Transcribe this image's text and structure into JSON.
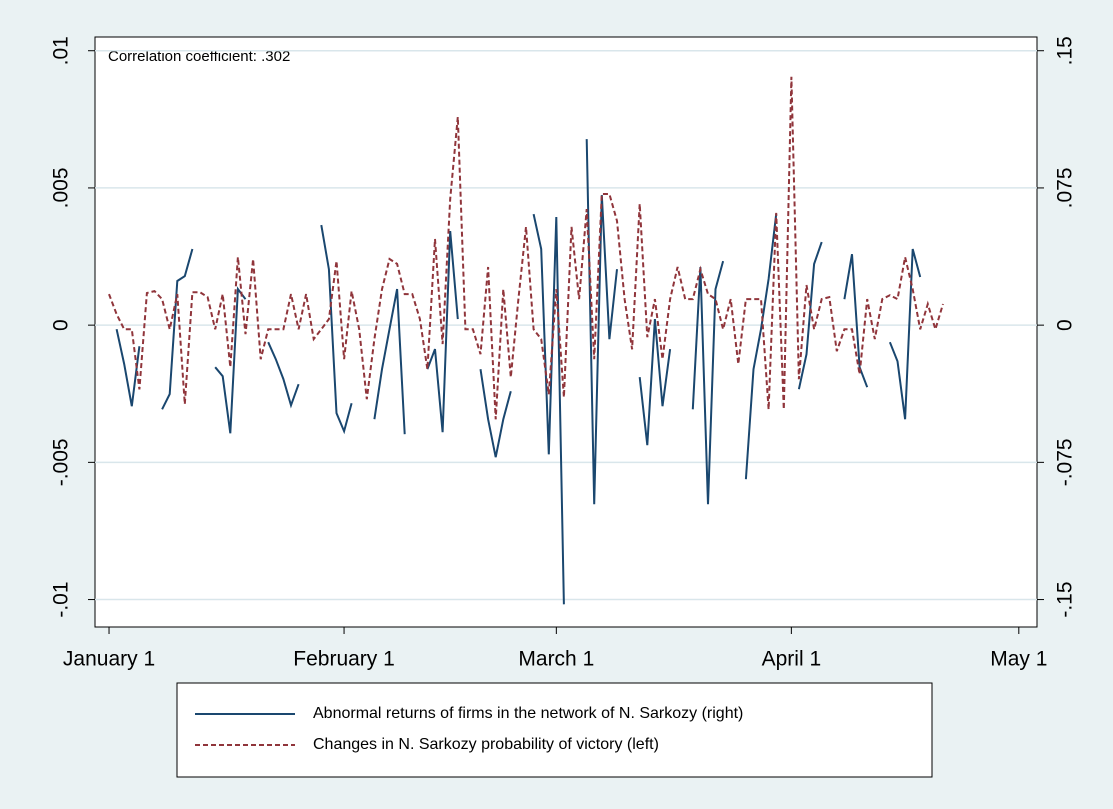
{
  "chart_data": {
    "type": "line",
    "annotation": "Correlation coefficient: .302",
    "xlim": [
      -0.85,
      123.4
    ],
    "xticks": [
      {
        "value": 1,
        "label": "January 1"
      },
      {
        "value": 32,
        "label": "February 1"
      },
      {
        "value": 60,
        "label": "March 1"
      },
      {
        "value": 91,
        "label": "April 1"
      },
      {
        "value": 121,
        "label": "May 1"
      }
    ],
    "ylim": [
      -0.011,
      0.0105
    ],
    "yticks": [
      {
        "value": -0.01,
        "label": "-.01"
      },
      {
        "value": -0.005,
        "label": "-.005"
      },
      0,
      {
        "value": 0.005,
        "label": ".005"
      },
      {
        "value": 0.01,
        "label": ".01"
      }
    ],
    "y2lim": [
      -0.165,
      0.1575
    ],
    "y2ticks": [
      {
        "value": -0.15,
        "label": "-.15"
      },
      {
        "value": -0.075,
        "label": "-.075"
      },
      0,
      {
        "value": 0.075,
        "label": ".075"
      },
      {
        "value": 0.15,
        "label": ".15"
      }
    ],
    "grid": true,
    "legend": "bottom",
    "series": [
      {
        "name": "Abnormal returns of firms in the network of N. Sarkozy (right)",
        "color": "#1a476f",
        "style": "solid",
        "axis": "y2",
        "x": [
          2,
          3,
          4,
          5,
          6,
          8,
          9,
          10,
          11,
          12,
          13,
          15,
          16,
          17,
          18,
          19,
          20,
          22,
          23,
          24,
          25,
          26,
          27,
          29,
          30,
          31,
          32,
          33,
          34,
          36,
          37,
          38,
          39,
          40,
          41,
          43,
          44,
          45,
          46,
          47,
          48,
          50,
          51,
          52,
          53,
          54,
          55,
          57,
          58,
          59,
          60,
          61,
          62,
          64,
          65,
          66,
          67,
          68,
          69,
          71,
          72,
          73,
          74,
          75,
          76,
          78,
          79,
          80,
          81,
          82,
          83,
          85,
          86,
          87,
          88,
          89,
          90,
          92,
          93,
          94,
          95,
          96,
          98,
          99,
          100,
          101,
          102,
          104,
          105,
          106,
          107,
          108
        ],
        "values": [
          -0.0022,
          -0.0213,
          -0.0443,
          -0.0115,
          null,
          -0.046,
          -0.0377,
          0.0241,
          0.0268,
          0.0416,
          null,
          -0.023,
          -0.0279,
          -0.0591,
          0.0197,
          0.0142,
          null,
          -0.0093,
          -0.0186,
          -0.0295,
          -0.0438,
          -0.0323,
          null,
          0.0547,
          0.0306,
          -0.0481,
          -0.058,
          -0.0427,
          null,
          -0.0514,
          -0.0241,
          -0.0022,
          0.0197,
          -0.0596,
          null,
          -0.0241,
          -0.0131,
          -0.0585,
          0.0514,
          0.0033,
          null,
          -0.0241,
          -0.0514,
          -0.0722,
          -0.0514,
          -0.0361,
          null,
          0.0607,
          0.0416,
          -0.0706,
          0.0591,
          -0.1526,
          null,
          0.1017,
          -0.0979,
          0.0711,
          -0.0077,
          0.0306,
          null,
          -0.0284,
          -0.0656,
          0.0033,
          -0.0443,
          -0.0131,
          null,
          -0.046,
          0.0317,
          -0.0979,
          0.0197,
          0.035,
          null,
          -0.0842,
          -0.0241,
          -0.0022,
          0.0252,
          0.0607,
          null,
          -0.035,
          -0.0159,
          0.0334,
          0.0454,
          null,
          0.0142,
          0.0388,
          -0.023,
          -0.0339,
          null,
          -0.0093,
          -0.0197,
          -0.0514,
          0.0416,
          0.0263
        ]
      },
      {
        "name": "Changes in N. Sarkozy probability of victory (left)",
        "color": "#90353b",
        "style": "dashed",
        "axis": "y",
        "x": [
          1,
          2,
          3,
          4,
          5,
          6,
          7,
          8,
          9,
          10,
          11,
          12,
          13,
          14,
          15,
          16,
          17,
          18,
          19,
          20,
          21,
          22,
          23,
          24,
          25,
          26,
          27,
          28,
          29,
          30,
          31,
          32,
          33,
          34,
          35,
          36,
          37,
          38,
          39,
          40,
          41,
          42,
          43,
          44,
          45,
          46,
          47,
          48,
          49,
          50,
          51,
          52,
          53,
          54,
          55,
          56,
          57,
          58,
          59,
          60,
          61,
          62,
          63,
          64,
          65,
          66,
          67,
          68,
          69,
          70,
          71,
          72,
          73,
          74,
          75,
          76,
          77,
          78,
          79,
          80,
          81,
          82,
          83,
          84,
          85,
          86,
          87,
          88,
          89,
          90,
          91,
          92,
          93,
          94,
          95,
          96,
          97,
          98,
          99,
          100,
          101,
          102,
          103,
          104,
          105,
          106,
          107,
          108,
          109,
          110,
          111
        ],
        "values": [
          0.00113,
          0.0004,
          -0.00015,
          -0.00015,
          -0.00234,
          0.00117,
          0.00124,
          0.00095,
          -0.00015,
          0.00113,
          -0.00288,
          0.0012,
          0.0012,
          0.00102,
          -0.00015,
          0.00113,
          -0.00153,
          0.00248,
          -0.00033,
          0.00241,
          -0.00124,
          -0.00015,
          -0.00015,
          -0.00015,
          0.00113,
          -0.00015,
          0.00113,
          -0.00051,
          -0.00015,
          0.00022,
          0.00234,
          -0.00124,
          0.00124,
          -0.00015,
          -0.0027,
          -0.00051,
          0.00131,
          0.00241,
          0.00223,
          0.00113,
          0.00113,
          0.00022,
          -0.00161,
          0.00314,
          -0.00069,
          0.0046,
          0.00759,
          -0.00015,
          -0.00015,
          -0.00106,
          0.00212,
          -0.00343,
          0.00131,
          -0.0019,
          0.00095,
          0.00358,
          -0.00015,
          -0.00051,
          -0.00252,
          0.00131,
          -0.00263,
          0.00358,
          0.00095,
          0.00423,
          -0.00124,
          0.00478,
          0.00478,
          0.0038,
          0.00095,
          -0.00088,
          0.00442,
          -0.00044,
          0.00095,
          -0.00124,
          0.00095,
          0.00212,
          0.00095,
          0.00095,
          0.00204,
          0.00113,
          0.00095,
          -0.00015,
          0.00095,
          -0.00142,
          0.00095,
          0.00095,
          0.00095,
          -0.00307,
          0.00409,
          -0.00307,
          0.00905,
          -0.00197,
          0.00146,
          -0.00015,
          0.00095,
          0.00102,
          -0.00095,
          -0.00015,
          -0.00015,
          -0.00179,
          0.00095,
          -0.00051,
          0.00095,
          0.00109,
          0.00095,
          0.00248,
          0.00131,
          -0.00015,
          0.00077,
          -0.00015,
          0.00077
        ]
      }
    ]
  }
}
